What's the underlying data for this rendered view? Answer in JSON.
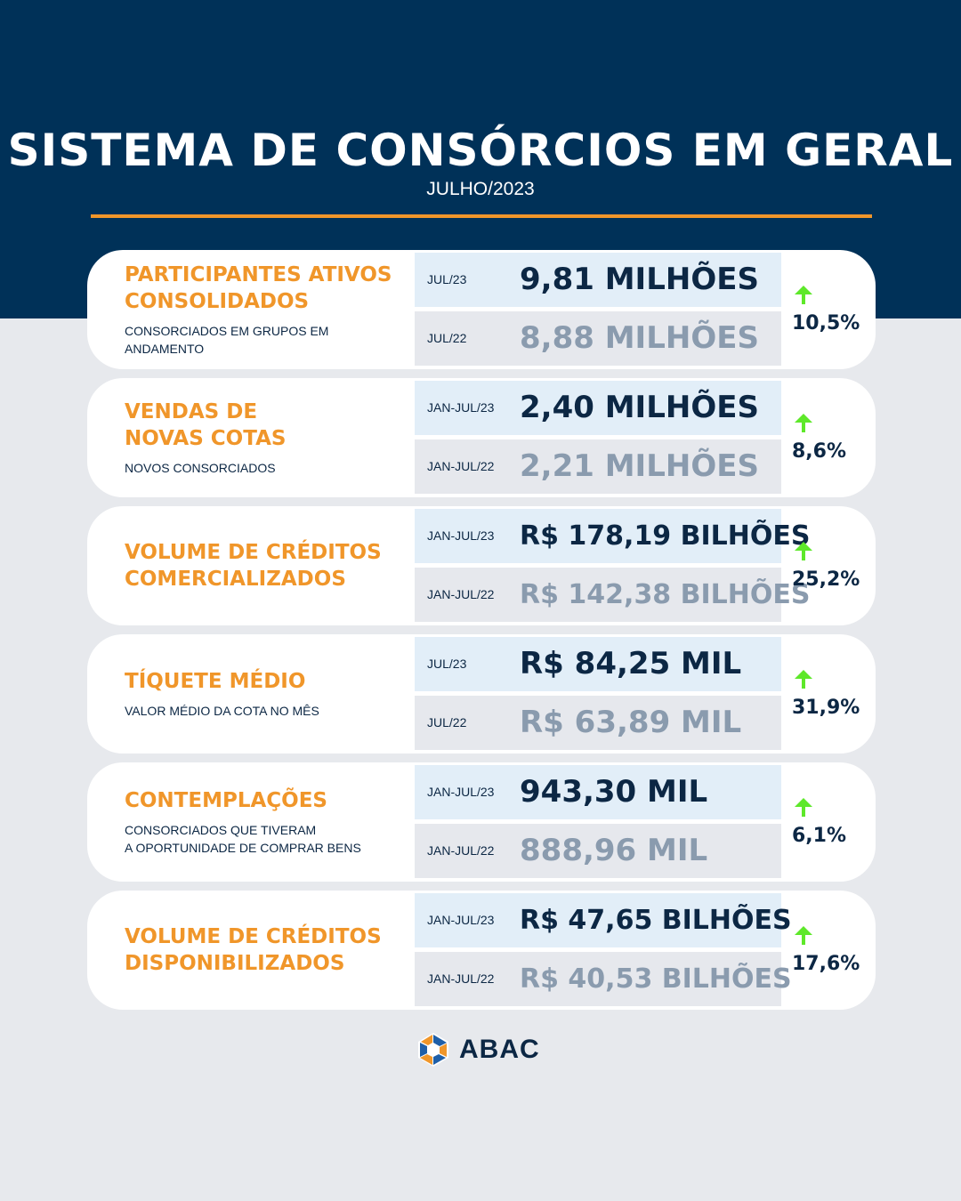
{
  "header": {
    "title": "SISTEMA DE CONSÓRCIOS EM GERAL",
    "subtitle": "JULHO/2023"
  },
  "colors": {
    "navy": "#003158",
    "orange": "#f0962a",
    "arrow_green": "#5ee82a",
    "current_bg": "#e2eef8",
    "previous_bg": "#e6e8ed"
  },
  "cards": [
    {
      "title": "PARTICIPANTES ATIVOS\nCONSOLIDADOS",
      "subtitle": "CONSORCIADOS EM GRUPOS EM ANDAMENTO",
      "current_period": "JUL/23",
      "current_value": "9,81 MILHÕES",
      "previous_period": "JUL/22",
      "previous_value": "8,88 MILHÕES",
      "change": "10,5%",
      "trend_icon": "arrow-up-icon"
    },
    {
      "title": "VENDAS DE\nNOVAS COTAS",
      "subtitle": "NOVOS CONSORCIADOS",
      "current_period": "JAN-JUL/23",
      "current_value": "2,40 MILHÕES",
      "previous_period": "JAN-JUL/22",
      "previous_value": "2,21 MILHÕES",
      "change": "8,6%",
      "trend_icon": "arrow-up-icon"
    },
    {
      "title": "VOLUME DE CRÉDITOS\nCOMERCIALIZADOS",
      "subtitle": "",
      "current_period": "JAN-JUL/23",
      "current_value": "R$ 178,19 BILHÕES",
      "previous_period": "JAN-JUL/22",
      "previous_value": "R$ 142,38 BILHÕES",
      "change": "25,2%",
      "trend_icon": "arrow-up-icon"
    },
    {
      "title": "TÍQUETE MÉDIO",
      "subtitle": "VALOR MÉDIO DA COTA NO MÊS",
      "current_period": "JUL/23",
      "current_value": "R$ 84,25 MIL",
      "previous_period": "JUL/22",
      "previous_value": "R$ 63,89 MIL",
      "change": "31,9%",
      "trend_icon": "arrow-up-icon"
    },
    {
      "title": "CONTEMPLAÇÕES",
      "subtitle": "CONSORCIADOS QUE TIVERAM\nA OPORTUNIDADE DE COMPRAR BENS",
      "current_period": "JAN-JUL/23",
      "current_value": "943,30 MIL",
      "previous_period": "JAN-JUL/22",
      "previous_value": "888,96 MIL",
      "change": "6,1%",
      "trend_icon": "arrow-up-icon"
    },
    {
      "title": "VOLUME DE CRÉDITOS\nDISPONIBILIZADOS",
      "subtitle": "",
      "current_period": "JAN-JUL/23",
      "current_value": "R$ 47,65 BILHÕES",
      "previous_period": "JAN-JUL/22",
      "previous_value": "R$ 40,53 BILHÕES",
      "change": "17,6%",
      "trend_icon": "arrow-up-icon"
    }
  ],
  "footer": {
    "logo_text": "ABAC",
    "logo_icon": "abac-logo-icon"
  }
}
